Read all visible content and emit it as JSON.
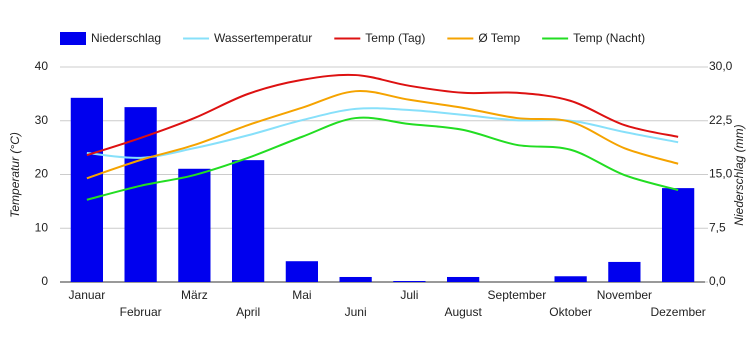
{
  "chart_data": {
    "type": "bar-line",
    "categories": [
      "Januar",
      "Februar",
      "März",
      "April",
      "Mai",
      "Juni",
      "Juli",
      "August",
      "September",
      "Oktober",
      "November",
      "Dezember"
    ],
    "series": [
      {
        "name": "Niederschlag",
        "type": "bar",
        "axis": "y2",
        "color": "#0000ee",
        "values": [
          25.7,
          24.4,
          15.8,
          17.0,
          2.9,
          0.7,
          0.14,
          0.7,
          0,
          0.8,
          2.8,
          13.1
        ]
      },
      {
        "name": "Wassertemperatur",
        "type": "line",
        "color": "#87e0fa",
        "values": [
          24,
          23.1,
          24.9,
          27.3,
          30.1,
          32.2,
          32,
          31.1,
          30.1,
          30,
          27.9,
          26
        ]
      },
      {
        "name": "Temp (Tag)",
        "type": "line",
        "color": "#dd1111",
        "values": [
          23.6,
          26.8,
          30.5,
          35,
          37.6,
          38.5,
          36.5,
          35.2,
          35.2,
          33.7,
          29.2,
          27
        ]
      },
      {
        "name": "Ø Temp",
        "type": "line",
        "color": "#f5a300",
        "values": [
          19.3,
          22.7,
          25.5,
          29.2,
          32.4,
          35.5,
          33.9,
          32.4,
          30.5,
          29.8,
          24.9,
          22
        ]
      },
      {
        "name": "Temp (Nacht)",
        "type": "line",
        "color": "#22dd22",
        "values": [
          15.3,
          17.9,
          19.9,
          23.1,
          27,
          30.5,
          29.4,
          28.3,
          25.5,
          24.6,
          19.9,
          17.1
        ]
      }
    ],
    "ylabel": "Temperatur (°C)",
    "y2label": "Niederschlag (mm)",
    "ylim": [
      0,
      40
    ],
    "yticks": [
      0,
      10,
      20,
      30,
      40
    ],
    "y2lim": [
      0,
      30
    ],
    "y2ticks": [
      {
        "value": 0,
        "label": "0,0"
      },
      {
        "value": 7.5,
        "label": "7,5"
      },
      {
        "value": 15,
        "label": "15,0"
      },
      {
        "value": 22.5,
        "label": "22,5"
      },
      {
        "value": 30,
        "label": "30,0"
      }
    ],
    "grid": true,
    "legend": "top"
  }
}
